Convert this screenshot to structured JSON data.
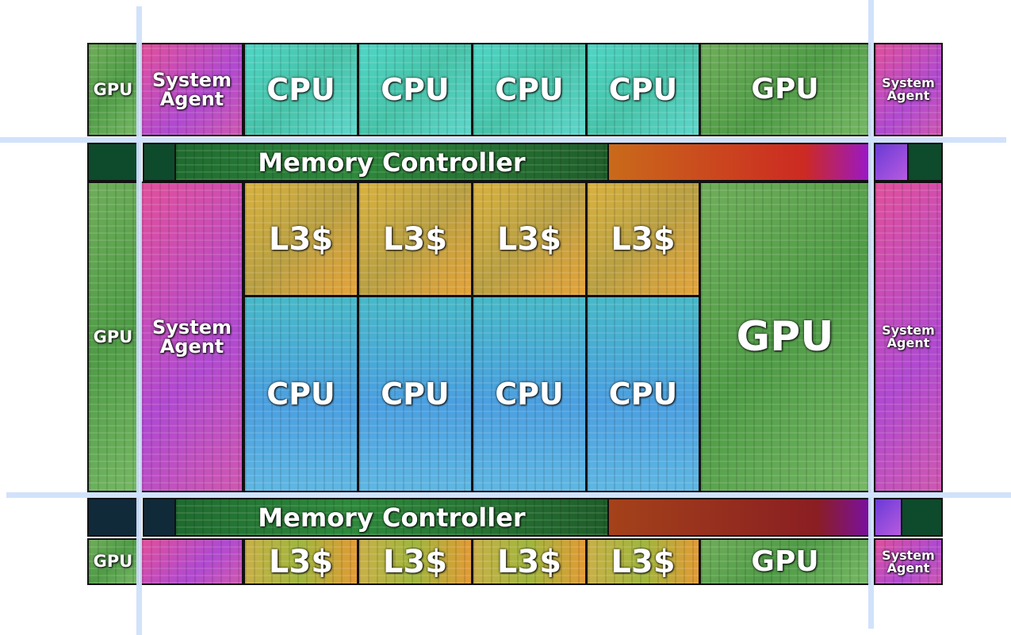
{
  "labels": {
    "gpu": "GPU",
    "cpu": "CPU",
    "l3": "L3$",
    "memory_controller": "Memory Controller",
    "system": "System",
    "agent": "Agent"
  }
}
